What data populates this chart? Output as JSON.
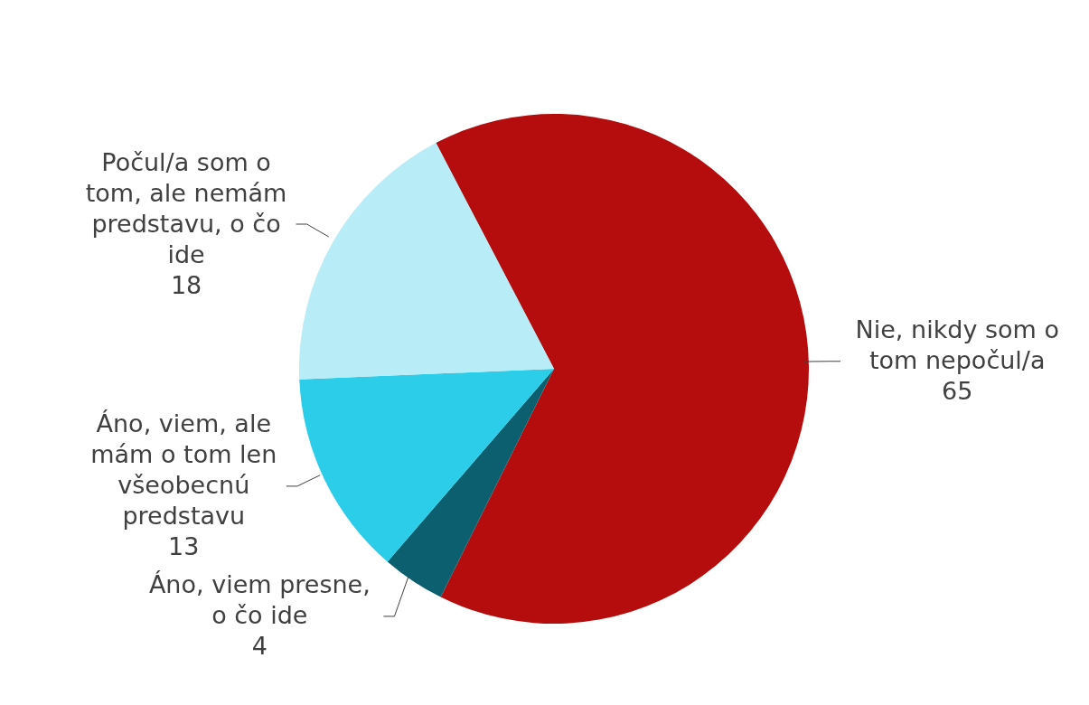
{
  "chart_data": {
    "type": "pie",
    "categories": [
      "Nie, nikdy som o tom nepočul/a",
      "Áno, viem presne, o čo ide",
      "Áno, viem, ale mám o tom len všeobecnú predstavu",
      "Počul/a som o tom, ale nemám predstavu, o čo ide"
    ],
    "values": [
      65,
      4,
      13,
      18
    ],
    "colors": [
      "#b50d0d",
      "#0b5f6e",
      "#2bcde9",
      "#b8ecf6"
    ],
    "data_labels": true
  }
}
